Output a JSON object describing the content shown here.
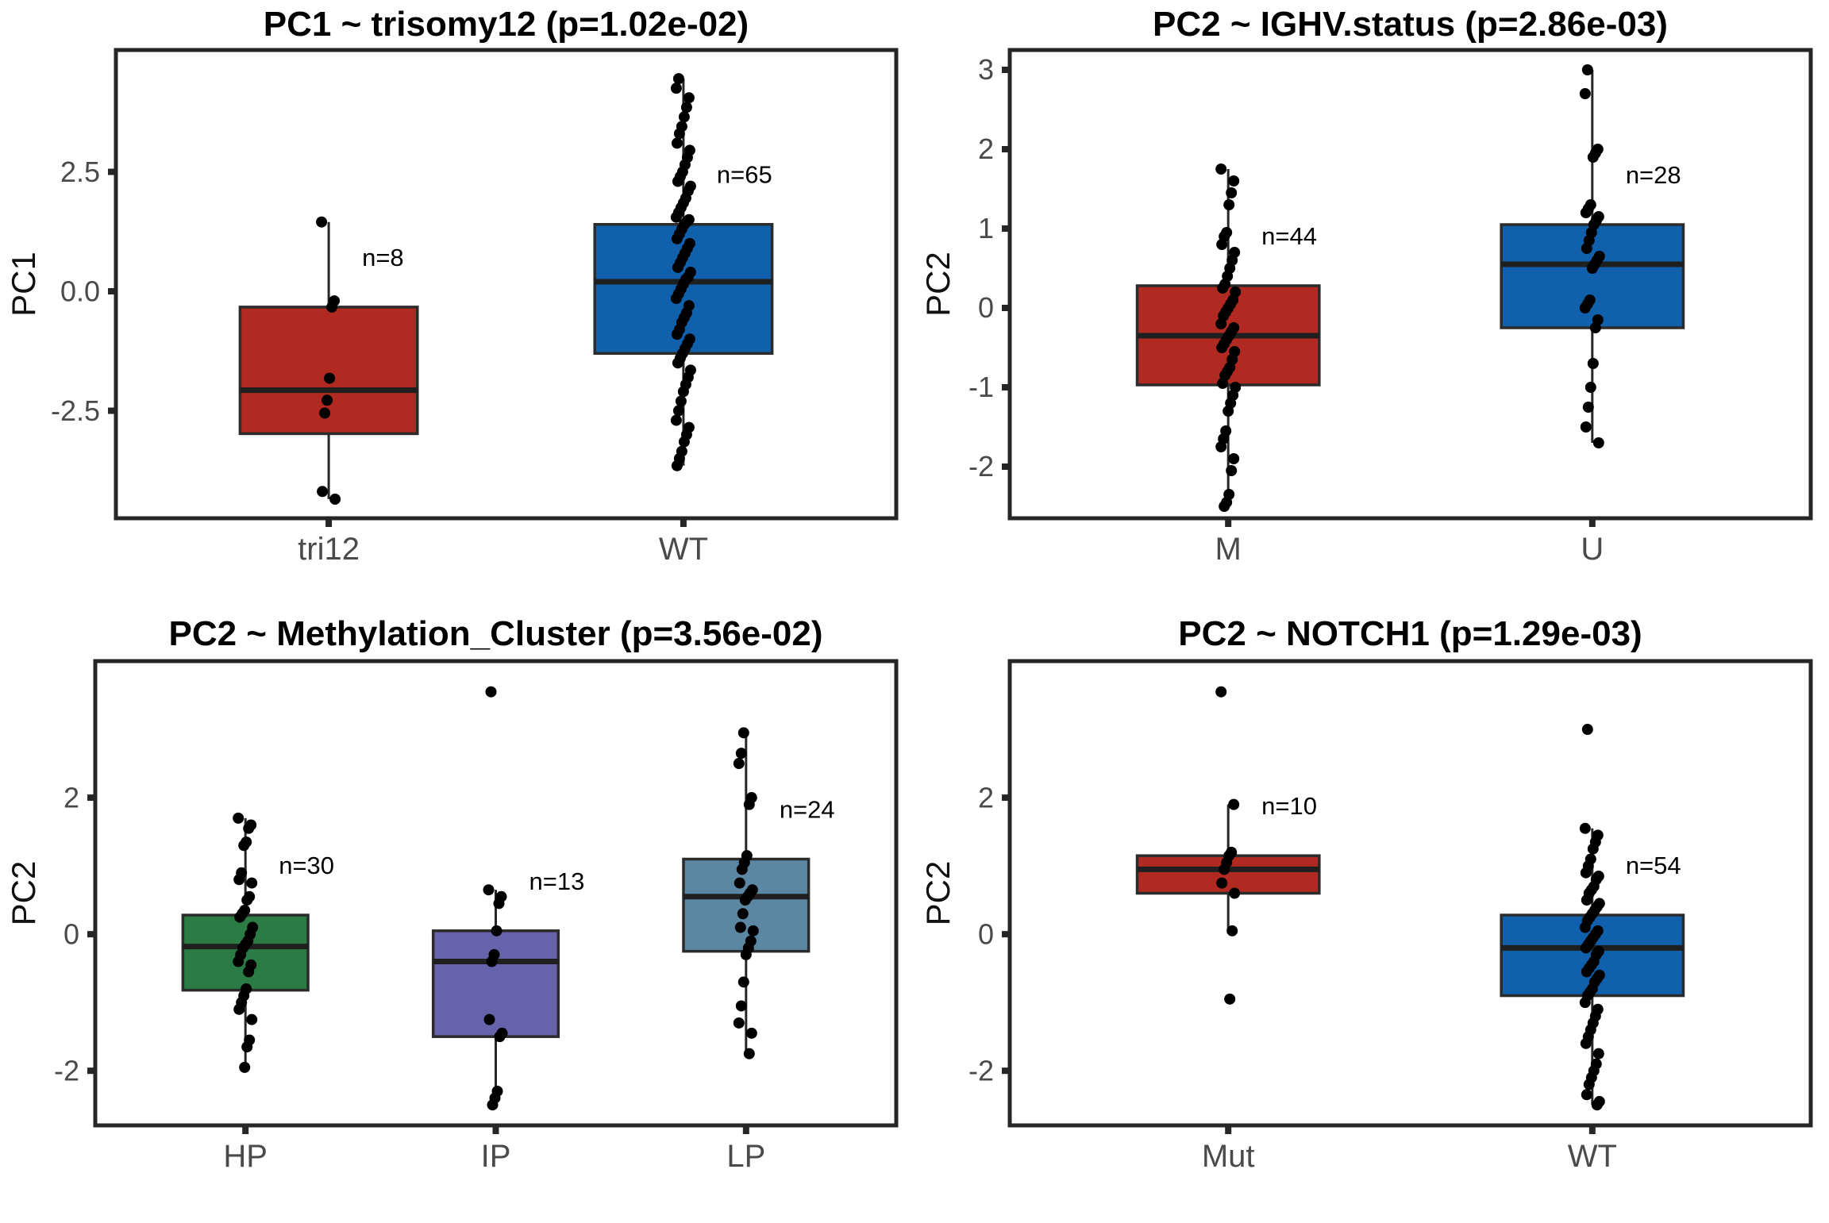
{
  "figure": {
    "background": "#FFFFFF",
    "point_color": "#000000",
    "line_color": "#262626",
    "axis_text_color": "#4A4A4A",
    "title_color": "#000000"
  },
  "chart_data": [
    {
      "type": "boxplot",
      "title": "PC1 ~ trisomy12 (p=1.02e-02)",
      "ylabel": "PC1",
      "xlabel": "",
      "ylim": [
        -4.75,
        5.05
      ],
      "grid": false,
      "legend": "none",
      "yticks": [
        {
          "value": 2.5,
          "label": "2.5"
        },
        {
          "value": 0.0,
          "label": "0.0"
        },
        {
          "value": -2.5,
          "label": "-2.5"
        }
      ],
      "groups": [
        {
          "category": "tri12",
          "n_label": "n=8",
          "color": "#B02A21",
          "box": {
            "q1": -2.98,
            "median": -2.07,
            "q3": -0.33,
            "whisker_low": -4.35,
            "whisker_high": 1.45
          },
          "points": [
            1.45,
            -0.2,
            -0.33,
            -1.82,
            -2.28,
            -2.55,
            -4.19,
            -4.35
          ]
        },
        {
          "category": "WT",
          "n_label": "n=65",
          "color": "#1060AC",
          "box": {
            "q1": -1.3,
            "median": 0.2,
            "q3": 1.4,
            "whisker_low": -3.65,
            "whisker_high": 4.45
          },
          "points": [
            4.45,
            4.25,
            4.05,
            3.85,
            3.65,
            3.45,
            3.3,
            3.1,
            2.95,
            2.8,
            2.65,
            2.5,
            2.4,
            2.3,
            2.2,
            2.1,
            1.95,
            1.85,
            1.75,
            1.65,
            1.55,
            1.5,
            1.45,
            1.4,
            1.3,
            1.2,
            1.1,
            1.0,
            0.9,
            0.8,
            0.7,
            0.6,
            0.5,
            0.4,
            0.3,
            0.25,
            0.15,
            0.05,
            -0.05,
            -0.15,
            -0.3,
            -0.45,
            -0.55,
            -0.65,
            -0.8,
            -0.9,
            -1.0,
            -1.1,
            -1.2,
            -1.3,
            -1.4,
            -1.5,
            -1.65,
            -1.8,
            -1.95,
            -2.1,
            -2.3,
            -2.5,
            -2.7,
            -2.85,
            -3.0,
            -3.15,
            -3.35,
            -3.5,
            -3.65
          ]
        }
      ]
    },
    {
      "type": "boxplot",
      "title": "PC2 ~ IGHV.status (p=2.86e-03)",
      "ylabel": "PC2",
      "xlabel": "",
      "ylim": [
        -2.65,
        3.25
      ],
      "grid": false,
      "legend": "none",
      "yticks": [
        {
          "value": 3,
          "label": "3"
        },
        {
          "value": 2,
          "label": "2"
        },
        {
          "value": 1,
          "label": "1"
        },
        {
          "value": 0,
          "label": "0"
        },
        {
          "value": -1,
          "label": "-1"
        },
        {
          "value": -2,
          "label": "-2"
        }
      ],
      "groups": [
        {
          "category": "M",
          "n_label": "n=44",
          "color": "#B02A21",
          "box": {
            "q1": -0.97,
            "median": -0.35,
            "q3": 0.28,
            "whisker_low": -2.5,
            "whisker_high": 1.75
          },
          "points": [
            1.75,
            1.6,
            1.45,
            1.3,
            0.95,
            0.9,
            0.8,
            0.7,
            0.6,
            0.5,
            0.4,
            0.3,
            0.25,
            0.2,
            0.1,
            0.05,
            0.0,
            -0.05,
            -0.1,
            -0.2,
            -0.25,
            -0.3,
            -0.35,
            -0.4,
            -0.45,
            -0.5,
            -0.55,
            -0.65,
            -0.75,
            -0.8,
            -0.85,
            -0.95,
            -1.0,
            -1.1,
            -1.2,
            -1.3,
            -1.55,
            -1.65,
            -1.75,
            -1.9,
            -2.05,
            -2.35,
            -2.45,
            -2.5
          ]
        },
        {
          "category": "U",
          "n_label": "n=28",
          "color": "#1060AC",
          "box": {
            "q1": -0.25,
            "median": 0.55,
            "q3": 1.05,
            "whisker_low": -1.7,
            "whisker_high": 3.0
          },
          "points": [
            3.0,
            2.7,
            2.0,
            1.95,
            1.9,
            1.3,
            1.25,
            1.2,
            1.15,
            1.1,
            1.05,
            0.95,
            0.85,
            0.75,
            0.65,
            0.6,
            0.55,
            0.5,
            0.1,
            0.05,
            0.0,
            -0.15,
            -0.25,
            -0.7,
            -1.0,
            -1.25,
            -1.5,
            -1.7
          ]
        }
      ]
    },
    {
      "type": "boxplot",
      "title": "PC2 ~ Methylation_Cluster (p=3.56e-02)",
      "ylabel": "PC2",
      "xlabel": "",
      "ylim": [
        -2.8,
        4.0
      ],
      "grid": false,
      "legend": "none",
      "yticks": [
        {
          "value": 2,
          "label": "2"
        },
        {
          "value": 0,
          "label": "0"
        },
        {
          "value": -2,
          "label": "-2"
        }
      ],
      "groups": [
        {
          "category": "HP",
          "n_label": "n=30",
          "color": "#2B7B45",
          "box": {
            "q1": -0.82,
            "median": -0.18,
            "q3": 0.28,
            "whisker_low": -1.95,
            "whisker_high": 1.7
          },
          "points": [
            1.7,
            1.6,
            1.55,
            1.35,
            1.3,
            0.9,
            0.8,
            0.75,
            0.55,
            0.5,
            0.35,
            0.3,
            0.25,
            0.1,
            0.0,
            -0.1,
            -0.15,
            -0.2,
            -0.3,
            -0.4,
            -0.45,
            -0.55,
            -0.8,
            -0.9,
            -1.0,
            -1.1,
            -1.25,
            -1.55,
            -1.65,
            -1.95
          ]
        },
        {
          "category": "IP",
          "n_label": "n=13",
          "color": "#6663AA",
          "box": {
            "q1": -1.5,
            "median": -0.4,
            "q3": 0.05,
            "whisker_low": -2.45,
            "whisker_high": 0.65
          },
          "points": [
            3.55,
            0.65,
            0.55,
            0.45,
            0.05,
            -0.3,
            -0.4,
            -1.25,
            -1.45,
            -1.5,
            -2.3,
            -2.4,
            -2.5
          ]
        },
        {
          "category": "LP",
          "n_label": "n=24",
          "color": "#5C87A3",
          "box": {
            "q1": -0.25,
            "median": 0.55,
            "q3": 1.1,
            "whisker_low": -1.75,
            "whisker_high": 2.95
          },
          "points": [
            2.95,
            2.65,
            2.5,
            2.0,
            1.9,
            1.15,
            1.05,
            0.95,
            0.75,
            0.65,
            0.6,
            0.55,
            0.5,
            0.3,
            0.1,
            0.05,
            -0.1,
            -0.2,
            -0.3,
            -0.7,
            -1.05,
            -1.3,
            -1.45,
            -1.75
          ]
        }
      ]
    },
    {
      "type": "boxplot",
      "title": "PC2 ~ NOTCH1 (p=1.29e-03)",
      "ylabel": "PC2",
      "xlabel": "",
      "ylim": [
        -2.8,
        4.0
      ],
      "grid": false,
      "legend": "none",
      "yticks": [
        {
          "value": 2,
          "label": "2"
        },
        {
          "value": 0,
          "label": "0"
        },
        {
          "value": -2,
          "label": "-2"
        }
      ],
      "groups": [
        {
          "category": "Mut",
          "n_label": "n=10",
          "color": "#B02A21",
          "box": {
            "q1": 0.6,
            "median": 0.95,
            "q3": 1.15,
            "whisker_low": 0.05,
            "whisker_high": 1.9
          },
          "points": [
            3.55,
            1.9,
            1.2,
            1.15,
            1.05,
            0.95,
            0.75,
            0.6,
            0.05,
            -0.95
          ]
        },
        {
          "category": "WT",
          "n_label": "n=54",
          "color": "#1060AC",
          "box": {
            "q1": -0.9,
            "median": -0.2,
            "q3": 0.28,
            "whisker_low": -2.5,
            "whisker_high": 1.55
          },
          "points": [
            3.0,
            1.55,
            1.45,
            1.35,
            1.25,
            1.1,
            1.0,
            0.9,
            0.85,
            0.8,
            0.7,
            0.65,
            0.6,
            0.5,
            0.45,
            0.4,
            0.35,
            0.3,
            0.25,
            0.2,
            0.1,
            0.05,
            0.0,
            -0.05,
            -0.1,
            -0.15,
            -0.2,
            -0.25,
            -0.3,
            -0.4,
            -0.45,
            -0.5,
            -0.55,
            -0.6,
            -0.65,
            -0.7,
            -0.8,
            -0.85,
            -0.9,
            -1.0,
            -1.1,
            -1.2,
            -1.3,
            -1.4,
            -1.5,
            -1.6,
            -1.75,
            -1.9,
            -2.0,
            -2.1,
            -2.2,
            -2.35,
            -2.45,
            -2.5
          ]
        }
      ]
    }
  ]
}
